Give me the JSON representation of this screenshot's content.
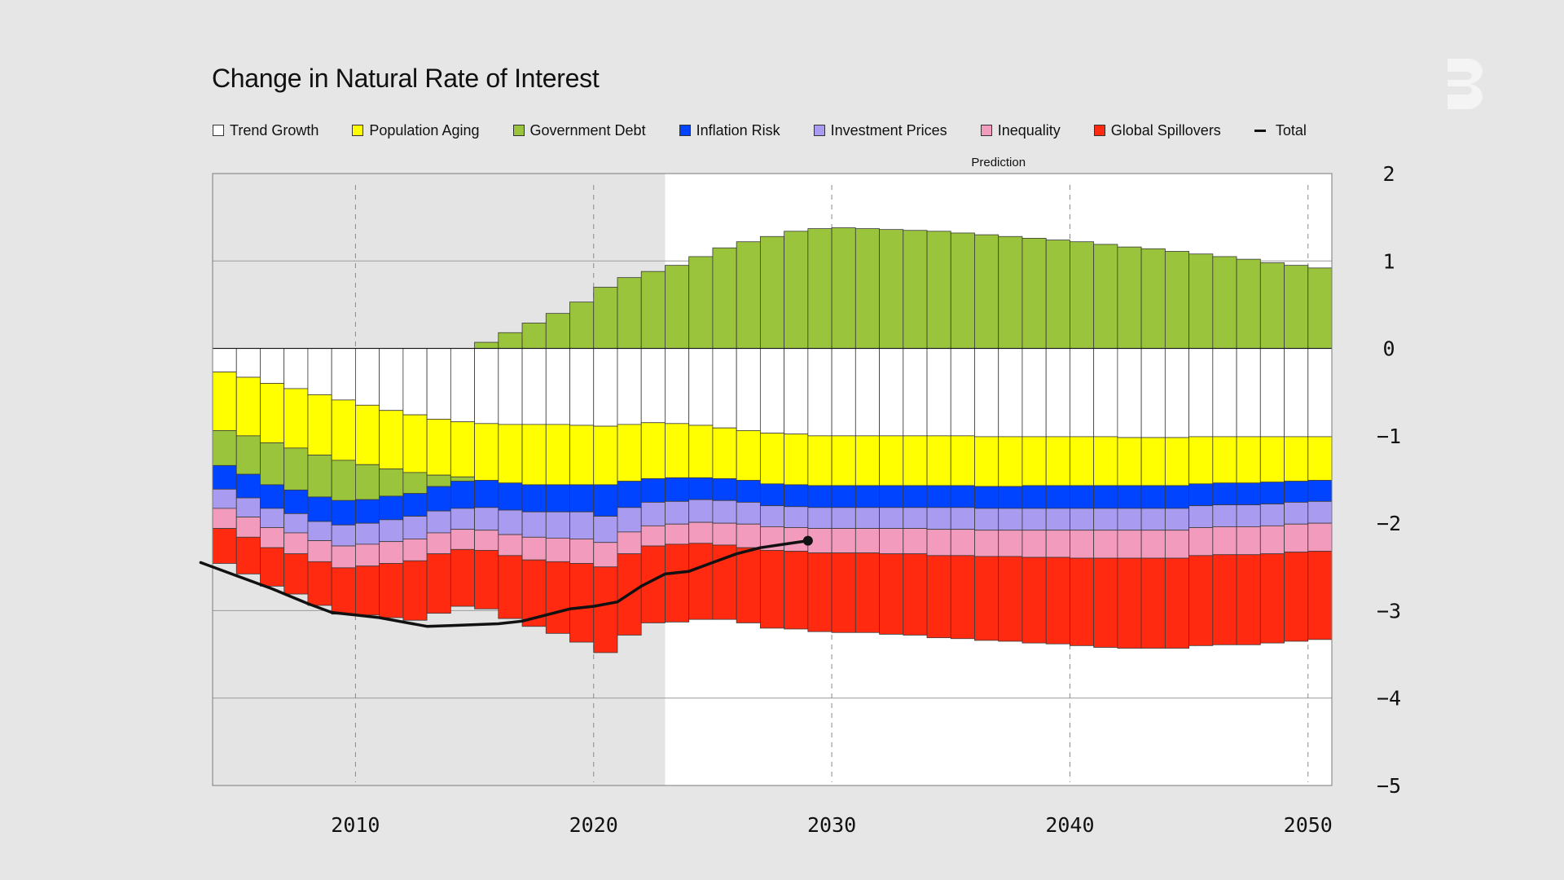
{
  "chart_data": {
    "type": "bar",
    "stacked": true,
    "title": "Change in Natural Rate of Interest",
    "prediction_label": "Prediction",
    "prediction_start_year": 2023,
    "xlim": [
      2004,
      2051
    ],
    "ylim": [
      -5,
      2
    ],
    "xticks": [
      2010,
      2020,
      2030,
      2040,
      2050
    ],
    "x_tick_labels": [
      "2010",
      "2020",
      "2030",
      "2040",
      "2050"
    ],
    "yticks": [
      2,
      1,
      0,
      -1,
      -2,
      -3,
      -4,
      -5
    ],
    "y_tick_labels": [
      "2",
      "1",
      "0",
      "−1",
      "−2",
      "−3",
      "−4",
      "−5"
    ],
    "xlabel": "",
    "ylabel": "",
    "legend_position": "top",
    "years": [
      2004,
      2005,
      2006,
      2007,
      2008,
      2009,
      2010,
      2011,
      2012,
      2013,
      2014,
      2015,
      2016,
      2017,
      2018,
      2019,
      2020,
      2021,
      2022,
      2023,
      2024,
      2025,
      2026,
      2027,
      2028,
      2029,
      2030,
      2031,
      2032,
      2033,
      2034,
      2035,
      2036,
      2037,
      2038,
      2039,
      2040,
      2041,
      2042,
      2043,
      2044,
      2045,
      2046,
      2047,
      2048,
      2049,
      2050
    ],
    "series": [
      {
        "name": "Trend Growth",
        "color": "#ffffff",
        "values": [
          -0.27,
          -0.33,
          -0.4,
          -0.46,
          -0.53,
          -0.59,
          -0.65,
          -0.71,
          -0.76,
          -0.81,
          -0.84,
          -0.86,
          -0.87,
          -0.87,
          -0.87,
          -0.88,
          -0.89,
          -0.87,
          -0.85,
          -0.86,
          -0.88,
          -0.91,
          -0.94,
          -0.97,
          -0.98,
          -1.0,
          -1.0,
          -1.0,
          -1.0,
          -1.0,
          -1.0,
          -1.0,
          -1.01,
          -1.01,
          -1.01,
          -1.01,
          -1.01,
          -1.01,
          -1.02,
          -1.02,
          -1.02,
          -1.01,
          -1.01,
          -1.01,
          -1.01,
          -1.01,
          -1.01
        ]
      },
      {
        "name": "Population Aging",
        "color": "#ffff00",
        "values": [
          -0.67,
          -0.67,
          -0.68,
          -0.68,
          -0.69,
          -0.69,
          -0.68,
          -0.67,
          -0.66,
          -0.64,
          -0.63,
          -0.65,
          -0.67,
          -0.69,
          -0.69,
          -0.68,
          -0.67,
          -0.65,
          -0.64,
          -0.62,
          -0.6,
          -0.58,
          -0.57,
          -0.58,
          -0.58,
          -0.57,
          -0.57,
          -0.57,
          -0.57,
          -0.57,
          -0.57,
          -0.57,
          -0.57,
          -0.57,
          -0.56,
          -0.56,
          -0.56,
          -0.56,
          -0.55,
          -0.55,
          -0.55,
          -0.54,
          -0.53,
          -0.53,
          -0.52,
          -0.51,
          -0.5
        ]
      },
      {
        "name": "Government Debt",
        "color": "#9ac43b",
        "values": [
          -0.4,
          -0.44,
          -0.48,
          -0.48,
          -0.48,
          -0.46,
          -0.4,
          -0.31,
          -0.24,
          -0.13,
          -0.05,
          0.07,
          0.18,
          0.29,
          0.4,
          0.53,
          0.7,
          0.81,
          0.88,
          0.95,
          1.05,
          1.15,
          1.22,
          1.28,
          1.34,
          1.37,
          1.38,
          1.37,
          1.36,
          1.35,
          1.34,
          1.32,
          1.3,
          1.28,
          1.26,
          1.24,
          1.22,
          1.19,
          1.16,
          1.14,
          1.11,
          1.08,
          1.05,
          1.02,
          0.98,
          0.95,
          0.92
        ]
      },
      {
        "name": "Inflation Risk",
        "color": "#0044ff",
        "values": [
          -0.27,
          -0.27,
          -0.27,
          -0.27,
          -0.28,
          -0.28,
          -0.27,
          -0.27,
          -0.26,
          -0.28,
          -0.31,
          -0.31,
          -0.31,
          -0.31,
          -0.31,
          -0.31,
          -0.36,
          -0.3,
          -0.27,
          -0.27,
          -0.25,
          -0.25,
          -0.25,
          -0.25,
          -0.25,
          -0.25,
          -0.25,
          -0.25,
          -0.25,
          -0.25,
          -0.25,
          -0.25,
          -0.25,
          -0.25,
          -0.26,
          -0.26,
          -0.26,
          -0.26,
          -0.26,
          -0.26,
          -0.26,
          -0.25,
          -0.25,
          -0.25,
          -0.25,
          -0.24,
          -0.24
        ]
      },
      {
        "name": "Investment Prices",
        "color": "#a99cf0",
        "values": [
          -0.22,
          -0.22,
          -0.22,
          -0.22,
          -0.22,
          -0.24,
          -0.24,
          -0.25,
          -0.26,
          -0.25,
          -0.24,
          -0.26,
          -0.28,
          -0.29,
          -0.3,
          -0.31,
          -0.3,
          -0.28,
          -0.27,
          -0.26,
          -0.26,
          -0.26,
          -0.25,
          -0.24,
          -0.24,
          -0.24,
          -0.24,
          -0.24,
          -0.24,
          -0.24,
          -0.25,
          -0.25,
          -0.25,
          -0.25,
          -0.25,
          -0.25,
          -0.25,
          -0.25,
          -0.25,
          -0.25,
          -0.25,
          -0.25,
          -0.25,
          -0.25,
          -0.25,
          -0.25,
          -0.25
        ]
      },
      {
        "name": "Inequality",
        "color": "#f29bbd",
        "values": [
          -0.23,
          -0.23,
          -0.23,
          -0.24,
          -0.24,
          -0.25,
          -0.25,
          -0.25,
          -0.25,
          -0.24,
          -0.23,
          -0.23,
          -0.24,
          -0.26,
          -0.27,
          -0.28,
          -0.28,
          -0.25,
          -0.23,
          -0.23,
          -0.24,
          -0.25,
          -0.27,
          -0.27,
          -0.27,
          -0.28,
          -0.28,
          -0.28,
          -0.29,
          -0.29,
          -0.3,
          -0.3,
          -0.3,
          -0.3,
          -0.31,
          -0.31,
          -0.32,
          -0.32,
          -0.32,
          -0.32,
          -0.32,
          -0.32,
          -0.32,
          -0.32,
          -0.32,
          -0.32,
          -0.32
        ]
      },
      {
        "name": "Global Spillovers",
        "color": "#ff2a0f",
        "values": [
          -0.4,
          -0.42,
          -0.44,
          -0.46,
          -0.5,
          -0.53,
          -0.56,
          -0.62,
          -0.68,
          -0.68,
          -0.65,
          -0.67,
          -0.72,
          -0.76,
          -0.82,
          -0.9,
          -0.98,
          -0.93,
          -0.88,
          -0.89,
          -0.87,
          -0.85,
          -0.86,
          -0.89,
          -0.89,
          -0.9,
          -0.91,
          -0.91,
          -0.92,
          -0.93,
          -0.94,
          -0.95,
          -0.96,
          -0.97,
          -0.98,
          -0.99,
          -1.0,
          -1.02,
          -1.03,
          -1.03,
          -1.03,
          -1.03,
          -1.03,
          -1.03,
          -1.02,
          -1.02,
          -1.01
        ]
      }
    ],
    "total_series": {
      "name": "Total",
      "color": "#111111",
      "points": [
        [
          2003.5,
          -2.45
        ],
        [
          2005,
          -2.6
        ],
        [
          2006.5,
          -2.75
        ],
        [
          2008,
          -2.92
        ],
        [
          2009,
          -3.02
        ],
        [
          2010,
          -3.05
        ],
        [
          2011,
          -3.08
        ],
        [
          2012,
          -3.13
        ],
        [
          2013,
          -3.18
        ],
        [
          2014,
          -3.17
        ],
        [
          2015,
          -3.16
        ],
        [
          2016,
          -3.15
        ],
        [
          2017,
          -3.12
        ],
        [
          2018,
          -3.05
        ],
        [
          2019,
          -2.98
        ],
        [
          2020,
          -2.95
        ],
        [
          2021,
          -2.9
        ],
        [
          2022,
          -2.72
        ],
        [
          2023,
          -2.58
        ],
        [
          2024,
          -2.55
        ],
        [
          2025,
          -2.45
        ],
        [
          2026,
          -2.35
        ],
        [
          2027,
          -2.28
        ],
        [
          2028,
          -2.24
        ],
        [
          2029,
          -2.2
        ]
      ],
      "end_marker": true
    }
  },
  "logo_text": "B"
}
